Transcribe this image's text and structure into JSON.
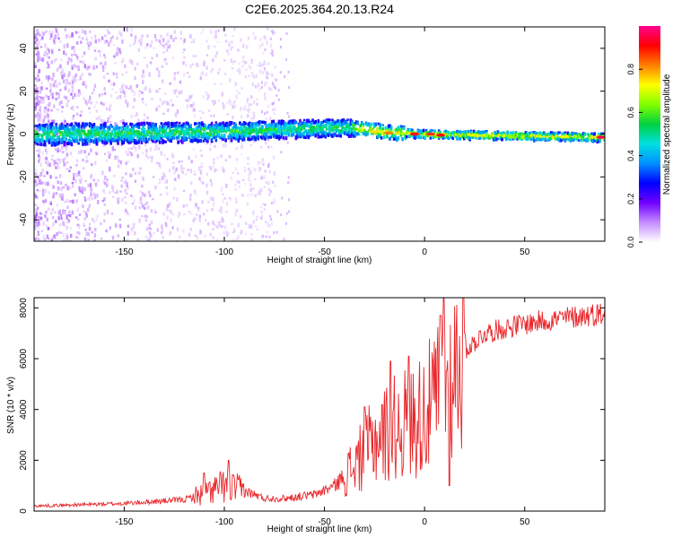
{
  "title": "C2E6.2025.364.20.13.R24",
  "colors": {
    "snr_line": "#e8262a",
    "axis": "#000000",
    "band_core": [
      "#5a00e0",
      "#2050ff",
      "#00d8ff",
      "#00e070",
      "#9cf000",
      "#ffd000",
      "#ff5000",
      "#e00040"
    ]
  },
  "chart_data": [
    {
      "id": "spectrogram",
      "type": "heatmap",
      "xlabel": "Height of straight line (km)",
      "ylabel": "Frequency (Hz)",
      "xlim": [
        -195,
        90
      ],
      "ylim": [
        -50,
        50
      ],
      "xticks": [
        -150,
        -100,
        -50,
        0,
        50
      ],
      "yticks": [
        -40,
        -20,
        0,
        20,
        40
      ],
      "ridge": [
        {
          "x": -195,
          "y": 0.0
        },
        {
          "x": -150,
          "y": 0.5
        },
        {
          "x": -100,
          "y": 1.2
        },
        {
          "x": -60,
          "y": 2.5
        },
        {
          "x": -40,
          "y": 3.0
        },
        {
          "x": -30,
          "y": 2.5
        },
        {
          "x": -20,
          "y": 1.0
        },
        {
          "x": 0,
          "y": 0.0
        },
        {
          "x": 30,
          "y": -0.5
        },
        {
          "x": 60,
          "y": -1.0
        },
        {
          "x": 90,
          "y": -1.5
        }
      ],
      "hot_spots": [
        {
          "x": -25,
          "y": 1.0,
          "amp": 0.75
        },
        {
          "x": -18,
          "y": 0.5,
          "amp": 0.82
        },
        {
          "x": -5,
          "y": 0.0,
          "amp": 0.9
        },
        {
          "x": 3,
          "y": 0.0,
          "amp": 0.88
        },
        {
          "x": 8,
          "y": -0.5,
          "amp": 0.9
        },
        {
          "x": 25,
          "y": -0.5,
          "amp": 0.7
        },
        {
          "x": 70,
          "y": -1.2,
          "amp": 0.72
        },
        {
          "x": 88,
          "y": -1.5,
          "amp": 0.95
        }
      ]
    },
    {
      "id": "colorbar",
      "type": "colorbar",
      "label": "Normalized spectral amplitude",
      "range": [
        0,
        1
      ],
      "ticks": [
        "0.0",
        "0.2",
        "0.4",
        "0.6",
        "0.8"
      ],
      "colors": [
        "#ffffff",
        "#c48cff",
        "#7000ff",
        "#0000ff",
        "#0090ff",
        "#00e0e0",
        "#00d040",
        "#80ff00",
        "#ffff00",
        "#ff8000",
        "#ff0000",
        "#ff0090"
      ]
    },
    {
      "id": "snr",
      "type": "line",
      "xlabel": "Height of straight line (km)",
      "ylabel": "SNR (10 * v/v)",
      "xlim": [
        -195,
        90
      ],
      "ylim": [
        0,
        8400
      ],
      "xticks": [
        -150,
        -100,
        -50,
        0,
        50
      ],
      "yticks": [
        0,
        2000,
        4000,
        6000,
        8000
      ],
      "trend": [
        {
          "x": -195,
          "y": 200
        },
        {
          "x": -150,
          "y": 300
        },
        {
          "x": -120,
          "y": 450
        },
        {
          "x": -110,
          "y": 700
        },
        {
          "x": -100,
          "y": 1000
        },
        {
          "x": -90,
          "y": 800
        },
        {
          "x": -80,
          "y": 500
        },
        {
          "x": -70,
          "y": 500
        },
        {
          "x": -55,
          "y": 650
        },
        {
          "x": -45,
          "y": 1000
        },
        {
          "x": -35,
          "y": 1800
        },
        {
          "x": -25,
          "y": 2800
        },
        {
          "x": -15,
          "y": 3300
        },
        {
          "x": -5,
          "y": 3600
        },
        {
          "x": 5,
          "y": 4300
        },
        {
          "x": 10,
          "y": 5200
        },
        {
          "x": 15,
          "y": 5600
        },
        {
          "x": 20,
          "y": 6300
        },
        {
          "x": 30,
          "y": 7000
        },
        {
          "x": 45,
          "y": 7300
        },
        {
          "x": 60,
          "y": 7500
        },
        {
          "x": 90,
          "y": 7800
        }
      ],
      "spikes": [
        {
          "x": -110,
          "y": 1500
        },
        {
          "x": -98,
          "y": 2000
        },
        {
          "x": -30,
          "y": 4100
        },
        {
          "x": -17,
          "y": 5900
        },
        {
          "x": -8,
          "y": 6100
        },
        {
          "x": 8,
          "y": 7700
        },
        {
          "x": 9.5,
          "y": 8400
        },
        {
          "x": 12.5,
          "y": 1000
        },
        {
          "x": 20,
          "y": 7000
        }
      ]
    }
  ]
}
